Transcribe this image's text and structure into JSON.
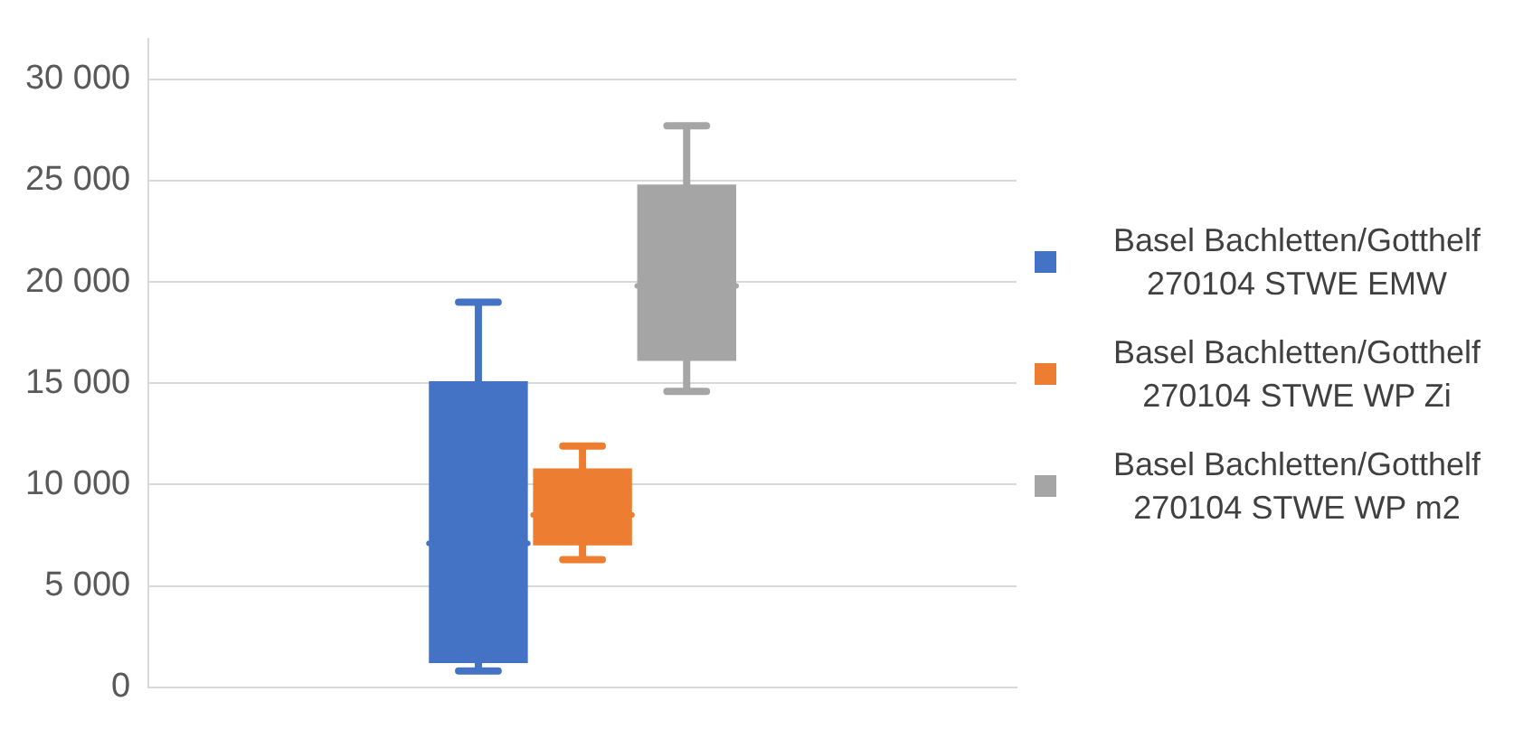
{
  "chart_data": {
    "type": "box",
    "categories": [
      null
    ],
    "series": [
      {
        "name": "Basel Bachletten/Gotthelf 270104 STWE EMW",
        "color": "#4472c4",
        "boxes": [
          {
            "low": 800,
            "q1": 1200,
            "median": 7100,
            "q3": 15100,
            "high": 19000
          }
        ]
      },
      {
        "name": "Basel Bachletten/Gotthelf 270104 STWE WP Zi",
        "color": "#ed7d31",
        "boxes": [
          {
            "low": 6300,
            "q1": 7000,
            "median": 8500,
            "q3": 10800,
            "high": 11900
          }
        ]
      },
      {
        "name": "Basel Bachletten/Gotthelf 270104 STWE WP m2",
        "color": "#a5a5a5",
        "boxes": [
          {
            "low": 14600,
            "q1": 16100,
            "median": 19800,
            "q3": 24800,
            "high": 27700
          }
        ]
      }
    ],
    "ylim": [
      0,
      32000
    ],
    "yticks": [
      {
        "value": 0,
        "label": "0"
      },
      {
        "value": 5000,
        "label": "5 000"
      },
      {
        "value": 10000,
        "label": "10 000"
      },
      {
        "value": 15000,
        "label": "15 000"
      },
      {
        "value": 20000,
        "label": "20 000"
      },
      {
        "value": 25000,
        "label": "25 000"
      },
      {
        "value": 30000,
        "label": "30 000"
      }
    ],
    "grid": "y",
    "legend": "right"
  }
}
